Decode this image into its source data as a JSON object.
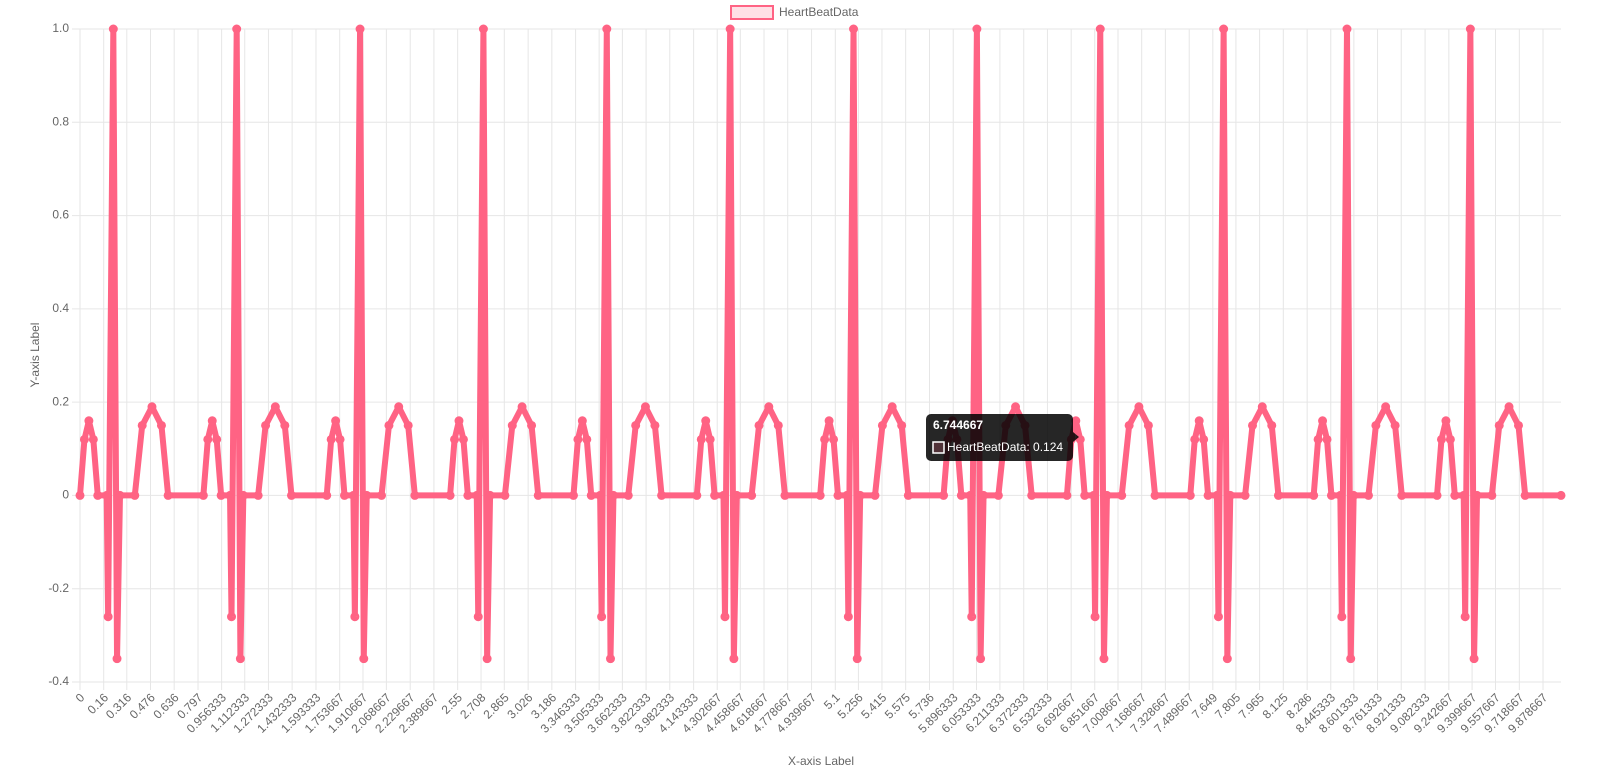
{
  "chart_data": {
    "type": "line",
    "x_label": "X-axis Label",
    "y_label": "Y-axis Label",
    "x": [
      0,
      0.03,
      0.06,
      0.09,
      0.12,
      0.18,
      0.19,
      0.225,
      0.25,
      0.27,
      0.37,
      0.42,
      0.486,
      0.55,
      0.595,
      0.833,
      0.863,
      0.893,
      0.923,
      0.953,
      1.013,
      1.023,
      1.058,
      1.083,
      1.103,
      1.203,
      1.253,
      1.319,
      1.383,
      1.428,
      1.666,
      1.696,
      1.726,
      1.756,
      1.786,
      1.846,
      1.856,
      1.891,
      1.916,
      1.936,
      2.036,
      2.086,
      2.152,
      2.216,
      2.261,
      2.499,
      2.529,
      2.559,
      2.589,
      2.619,
      2.679,
      2.689,
      2.724,
      2.749,
      2.769,
      2.869,
      2.919,
      2.985,
      3.049,
      3.094,
      3.332,
      3.362,
      3.392,
      3.422,
      3.452,
      3.512,
      3.522,
      3.557,
      3.582,
      3.602,
      3.702,
      3.752,
      3.818,
      3.882,
      3.927,
      4.165,
      4.195,
      4.225,
      4.255,
      4.285,
      4.345,
      4.355,
      4.39,
      4.415,
      4.435,
      4.535,
      4.585,
      4.651,
      4.715,
      4.76,
      4.998,
      5.028,
      5.058,
      5.088,
      5.118,
      5.178,
      5.188,
      5.223,
      5.248,
      5.268,
      5.368,
      5.418,
      5.484,
      5.548,
      5.593,
      5.831,
      5.861,
      5.891,
      5.921,
      5.951,
      6.011,
      6.021,
      6.056,
      6.081,
      6.101,
      6.201,
      6.251,
      6.317,
      6.381,
      6.426,
      6.664,
      6.694,
      6.724,
      6.754,
      6.784,
      6.844,
      6.854,
      6.889,
      6.914,
      6.934,
      7.034,
      7.084,
      7.15,
      7.214,
      7.259,
      7.497,
      7.527,
      7.557,
      7.587,
      7.617,
      7.677,
      7.687,
      7.722,
      7.747,
      7.767,
      7.867,
      7.917,
      7.983,
      8.047,
      8.092,
      8.33,
      8.36,
      8.39,
      8.42,
      8.45,
      8.51,
      8.52,
      8.555,
      8.58,
      8.6,
      8.7,
      8.75,
      8.816,
      8.88,
      8.925,
      9.163,
      9.193,
      9.223,
      9.253,
      9.283,
      9.343,
      9.353,
      9.388,
      9.413,
      9.433,
      9.533,
      9.583,
      9.649,
      9.713,
      9.758,
      10
    ],
    "series": [
      {
        "name": "HeartBeatData",
        "color": "#ff6384",
        "fill": "rgba(255,99,132,0.2)",
        "values": [
          0,
          0.12,
          0.16,
          0.12,
          0,
          0,
          -0.26,
          1,
          -0.35,
          0,
          0,
          0.15,
          0.19,
          0.15,
          0,
          0,
          0.12,
          0.16,
          0.12,
          0,
          0,
          -0.26,
          1,
          -0.35,
          0,
          0,
          0.15,
          0.19,
          0.15,
          0,
          0,
          0.12,
          0.16,
          0.12,
          0,
          0,
          -0.26,
          1,
          -0.35,
          0,
          0,
          0.15,
          0.19,
          0.15,
          0,
          0,
          0.12,
          0.16,
          0.12,
          0,
          0,
          -0.26,
          1,
          -0.35,
          0,
          0,
          0.15,
          0.19,
          0.15,
          0,
          0,
          0.12,
          0.16,
          0.12,
          0,
          0,
          -0.26,
          1,
          -0.35,
          0,
          0,
          0.15,
          0.19,
          0.15,
          0,
          0,
          0.12,
          0.16,
          0.12,
          0,
          0,
          -0.26,
          1,
          -0.35,
          0,
          0,
          0.15,
          0.19,
          0.15,
          0,
          0,
          0.12,
          0.16,
          0.12,
          0,
          0,
          -0.26,
          1,
          -0.35,
          0,
          0,
          0.15,
          0.19,
          0.15,
          0,
          0,
          0.12,
          0.16,
          0.12,
          0,
          0,
          -0.26,
          1,
          -0.35,
          0,
          0,
          0.15,
          0.19,
          0.15,
          0,
          0,
          0.12,
          0.16,
          0.12,
          0,
          0,
          -0.26,
          1,
          -0.35,
          0,
          0,
          0.15,
          0.19,
          0.15,
          0,
          0,
          0.12,
          0.16,
          0.12,
          0,
          0,
          -0.26,
          1,
          -0.35,
          0,
          0,
          0.15,
          0.19,
          0.15,
          0,
          0,
          0.12,
          0.16,
          0.12,
          0,
          0,
          -0.26,
          1,
          -0.35,
          0,
          0,
          0.15,
          0.19,
          0.15,
          0,
          0,
          0.12,
          0.16,
          0.12,
          0,
          0,
          -0.26,
          1,
          -0.35,
          0,
          0,
          0.15,
          0.19,
          0.15,
          0,
          0
        ]
      }
    ],
    "xlim": [
      0,
      10
    ],
    "xticks": [
      0,
      0.16,
      0.316,
      0.476,
      0.636,
      0.797,
      0.956333,
      1.112333,
      1.272333,
      1.432333,
      1.593333,
      1.753667,
      1.910667,
      2.068667,
      2.229667,
      2.389667,
      2.55,
      2.708,
      2.865,
      3.026,
      3.186,
      3.346333,
      3.505333,
      3.662333,
      3.822333,
      3.982333,
      4.143333,
      4.302667,
      4.458667,
      4.618667,
      4.778667,
      4.939667,
      5.1,
      5.256,
      5.415,
      5.575,
      5.736,
      5.896333,
      6.053333,
      6.211333,
      6.372333,
      6.532333,
      6.692667,
      6.851667,
      7.008667,
      7.168667,
      7.328667,
      7.489667,
      7.649,
      7.805,
      7.965,
      8.125,
      8.286,
      8.445333,
      8.601333,
      8.761333,
      8.921333,
      9.082333,
      9.242667,
      9.399667,
      9.557667,
      9.718667,
      9.878667
    ],
    "ylim": [
      -0.4,
      1
    ],
    "yticks": [
      -0.4,
      -0.2,
      0,
      0.2,
      0.4,
      0.6,
      0.8,
      {
        "value": 1,
        "label": "1.0"
      }
    ],
    "grid": true,
    "legend": "top",
    "tooltip": {
      "title": "6.744667",
      "label": "HeartBeatData: 0.124"
    }
  }
}
